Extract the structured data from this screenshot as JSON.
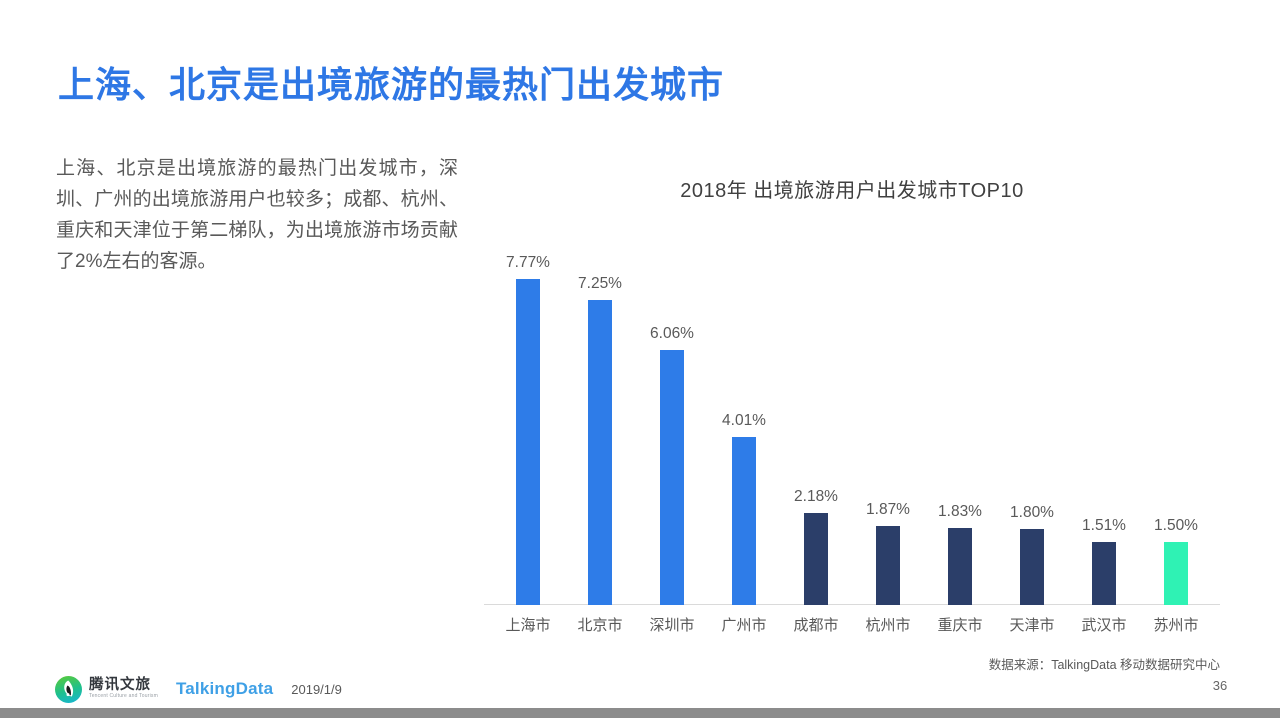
{
  "title": "上海、北京是出境旅游的最热门出发城市",
  "paragraph": "上海、北京是出境旅游的最热门出发城市，深圳、广州的出境旅游用户也较多；成都、杭州、重庆和天津位于第二梯队，为出境旅游市场贡献了2%左右的客源。",
  "chart_data": {
    "type": "bar",
    "title": "2018年 出境旅游用户出发城市TOP10",
    "categories": [
      "上海市",
      "北京市",
      "深圳市",
      "广州市",
      "成都市",
      "杭州市",
      "重庆市",
      "天津市",
      "武汉市",
      "苏州市"
    ],
    "values": [
      7.77,
      7.25,
      6.06,
      4.01,
      2.18,
      1.87,
      1.83,
      1.8,
      1.51,
      1.5
    ],
    "value_labels": [
      "7.77%",
      "7.25%",
      "6.06%",
      "4.01%",
      "2.18%",
      "1.87%",
      "1.83%",
      "1.80%",
      "1.51%",
      "1.50%"
    ],
    "bar_colors": [
      "#2E7CE8",
      "#2E7CE8",
      "#2E7CE8",
      "#2E7CE8",
      "#2B3E69",
      "#2B3E69",
      "#2B3E69",
      "#2B3E69",
      "#2B3E69",
      "#2FF2B4"
    ],
    "xlabel": "",
    "ylabel": "",
    "ylim": [
      0,
      8.6
    ],
    "grid": false,
    "legend": "none",
    "source": "数据来源：TalkingData  移动数据研究中心"
  },
  "footer": {
    "tencent_brand": "腾讯文旅",
    "tencent_sub": "Tencent Culture and Tourism",
    "talkingdata": "TalkingData",
    "date": "2019/1/9",
    "page_number": "36"
  },
  "colors": {
    "title_blue": "#2E77E5",
    "bar_blue": "#2E7CE8",
    "bar_navy": "#2B3E69",
    "bar_mint": "#2FF2B4",
    "text_gray": "#595959",
    "axis_gray": "#DADADA",
    "bottom_bar_gray": "#8C8C8C"
  }
}
